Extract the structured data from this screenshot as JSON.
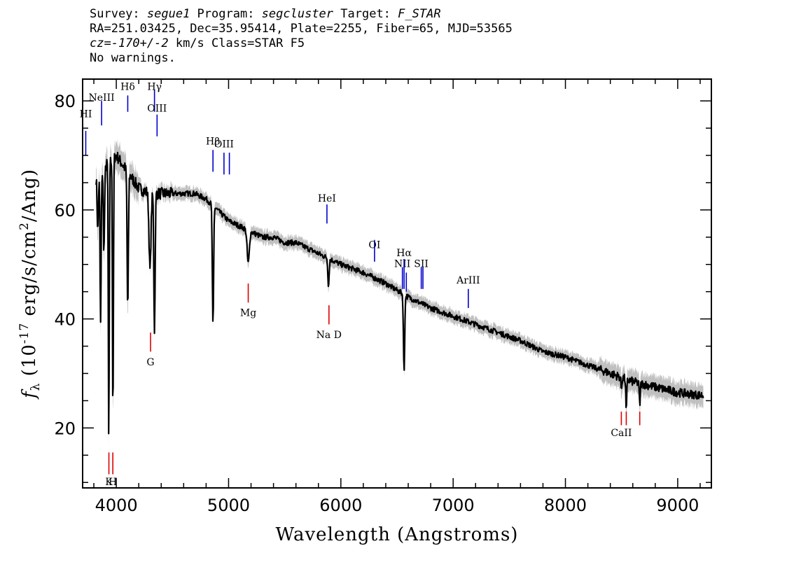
{
  "header": {
    "line1": {
      "survey_label": "Survey: ",
      "survey": "segue1",
      "program_label": " Program: ",
      "program": "segcluster",
      "target_label": " Target: ",
      "target": "F_STAR"
    },
    "line2": "RA=251.03425, Dec=35.95414, Plate=2255, Fiber=65, MJD=53565",
    "line3": {
      "cz": "cz=-170+/-2",
      "rest": " km/s Class=STAR F5"
    },
    "line4": "No warnings."
  },
  "chart_data": {
    "type": "line",
    "xlabel": "Wavelength (Angstroms)",
    "ylabel_parts": {
      "f": "f",
      "sub": "λ",
      "pre": " (10",
      "exp1": "-17",
      "mid": " erg/s/cm",
      "exp2": "2",
      "post": "/Ang)"
    },
    "xlim": [
      3700,
      9300
    ],
    "ylim": [
      9,
      84
    ],
    "x_ticks": [
      4000,
      5000,
      6000,
      7000,
      8000,
      9000
    ],
    "x_tick_labels": [
      "4000",
      "5000",
      "6000",
      "7000",
      "8000",
      "9000"
    ],
    "y_ticks": [
      20,
      40,
      60,
      80
    ],
    "y_tick_labels": [
      "20",
      "40",
      "60",
      "80"
    ],
    "colors": {
      "flux": "#000000",
      "error_band": "#c0c0c0",
      "emission": "#0000cc",
      "absorption": "#dd0000"
    },
    "continuum": [
      [
        3820,
        66
      ],
      [
        3900,
        68
      ],
      [
        4000,
        70
      ],
      [
        4100,
        67
      ],
      [
        4200,
        64
      ],
      [
        4300,
        63
      ],
      [
        4400,
        63
      ],
      [
        4500,
        63
      ],
      [
        4600,
        63
      ],
      [
        4700,
        63
      ],
      [
        4800,
        62
      ],
      [
        4900,
        60
      ],
      [
        5000,
        58
      ],
      [
        5100,
        57
      ],
      [
        5200,
        56
      ],
      [
        5300,
        55
      ],
      [
        5400,
        55
      ],
      [
        5500,
        54
      ],
      [
        5600,
        54
      ],
      [
        5700,
        53
      ],
      [
        5800,
        52
      ],
      [
        5900,
        51
      ],
      [
        6000,
        50
      ],
      [
        6200,
        48.5
      ],
      [
        6400,
        46.5
      ],
      [
        6600,
        44
      ],
      [
        6800,
        42
      ],
      [
        7000,
        40.5
      ],
      [
        7200,
        39
      ],
      [
        7400,
        37.5
      ],
      [
        7600,
        36
      ],
      [
        7800,
        34
      ],
      [
        8000,
        33
      ],
      [
        8200,
        31.5
      ],
      [
        8400,
        30
      ],
      [
        8600,
        28.5
      ],
      [
        8800,
        27.5
      ],
      [
        9000,
        26.5
      ],
      [
        9200,
        26
      ]
    ],
    "absorption_features": [
      {
        "x": 3835,
        "depth": 10,
        "width": 8
      },
      {
        "x": 3860,
        "depth": 28,
        "width": 7
      },
      {
        "x": 3890,
        "depth": 15,
        "width": 8
      },
      {
        "x": 3933,
        "depth": 52,
        "width": 6
      },
      {
        "x": 3970,
        "depth": 48,
        "width": 6
      },
      {
        "x": 4102,
        "depth": 25,
        "width": 8
      },
      {
        "x": 4300,
        "depth": 14,
        "width": 12
      },
      {
        "x": 4340,
        "depth": 25,
        "width": 8
      },
      {
        "x": 4861,
        "depth": 22,
        "width": 8
      },
      {
        "x": 5175,
        "depth": 6,
        "width": 14
      },
      {
        "x": 5890,
        "depth": 5,
        "width": 8
      },
      {
        "x": 6563,
        "depth": 14,
        "width": 8
      },
      {
        "x": 8498,
        "depth": 2,
        "width": 6
      },
      {
        "x": 8542,
        "depth": 6,
        "width": 6
      },
      {
        "x": 8662,
        "depth": 4,
        "width": 6
      }
    ],
    "emission_lines": [
      {
        "label": "HI",
        "wave": 3728,
        "label_y": 77,
        "tick": [
          70,
          74.5
        ]
      },
      {
        "label": "NeIII",
        "wave": 3869,
        "label_y": 80,
        "tick": [
          75.5,
          80
        ]
      },
      {
        "label": "Hδ",
        "wave": 4102,
        "label_y": 82,
        "tick": [
          78,
          81
        ]
      },
      {
        "label": "Hγ",
        "wave": 4340,
        "label_y": 82,
        "tick": [
          78,
          82
        ]
      },
      {
        "label": "OIII",
        "wave": 4363,
        "label_y": 78,
        "tick": [
          73.5,
          77.5
        ]
      },
      {
        "label": "Hβ",
        "wave": 4861,
        "label_y": 72,
        "tick": [
          67,
          71
        ]
      },
      {
        "label": "OIII",
        "wave": 4959,
        "label_y": 71.5,
        "tick": [
          66.5,
          70.5
        ]
      },
      {
        "label": "OIII",
        "wave": 5007,
        "label_y": null,
        "tick": [
          66.5,
          70.5
        ]
      },
      {
        "label": "HeI",
        "wave": 5876,
        "label_y": 61.5,
        "tick": [
          57.5,
          61
        ]
      },
      {
        "label": "OI",
        "wave": 6300,
        "label_y": 53,
        "tick": [
          50.5,
          54.5
        ]
      },
      {
        "label": "NII",
        "wave": 6548,
        "label_y": 49.5,
        "tick": [
          45.5,
          49.5
        ]
      },
      {
        "label": "Hα",
        "wave": 6563,
        "label_y": 51.5,
        "tick": [
          45.5,
          51
        ]
      },
      {
        "label": "NII",
        "wave": 6583,
        "label_y": null,
        "tick": [
          45,
          48.5
        ]
      },
      {
        "label": "SII",
        "wave": 6716,
        "label_y": 49.5,
        "tick": [
          45.5,
          49.5
        ]
      },
      {
        "label": "SII",
        "wave": 6731,
        "label_y": null,
        "tick": [
          45.5,
          49.5
        ]
      },
      {
        "label": "ArIII",
        "wave": 7135,
        "label_y": 46.5,
        "tick": [
          42,
          45.5
        ]
      }
    ],
    "absorption_lines": [
      {
        "label": "K",
        "wave": 3934,
        "label_y": 9.5,
        "tick": [
          11.5,
          15.5
        ]
      },
      {
        "label": "H",
        "wave": 3969,
        "label_y": 9.5,
        "tick": [
          11.5,
          15.5
        ]
      },
      {
        "label": "G",
        "wave": 4305,
        "label_y": 31.5,
        "tick": [
          34,
          37.5
        ]
      },
      {
        "label": "Mg",
        "wave": 5175,
        "label_y": 40.5,
        "tick": [
          43,
          46.5
        ]
      },
      {
        "label": "Na D",
        "wave": 5894,
        "label_y": 36.5,
        "tick": [
          39,
          42.5
        ]
      },
      {
        "label": "CaII",
        "wave": 8498,
        "label_y": 18.5,
        "tick": [
          20.5,
          23
        ]
      },
      {
        "label": "",
        "wave": 8542,
        "label_y": null,
        "tick": [
          20.5,
          23
        ]
      },
      {
        "label": "",
        "wave": 8662,
        "label_y": null,
        "tick": [
          20.5,
          23
        ]
      }
    ]
  }
}
